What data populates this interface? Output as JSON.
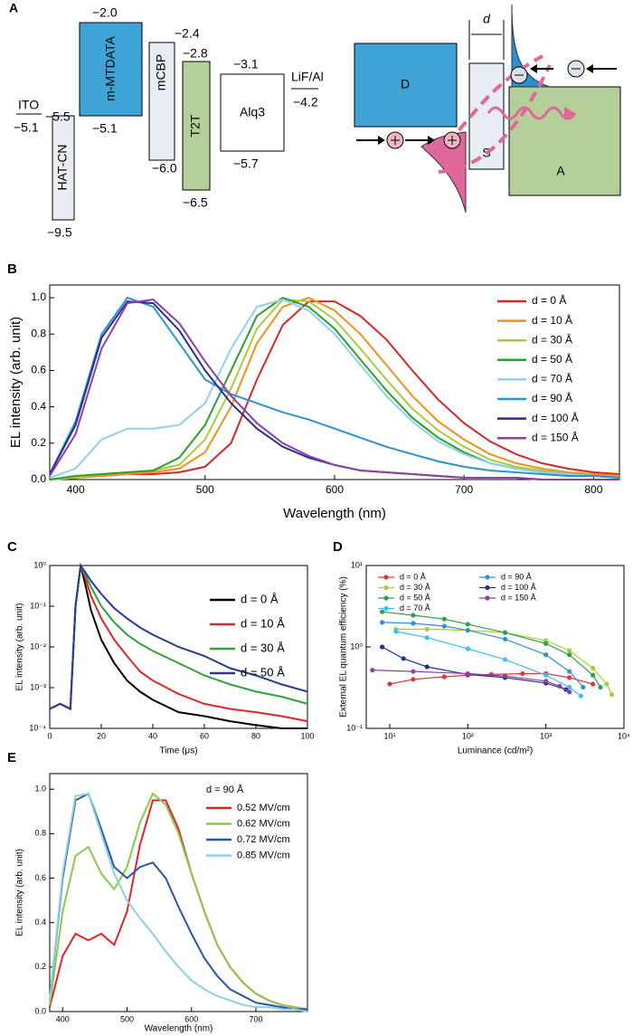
{
  "diagram": {
    "label": "A",
    "ito": {
      "name": "ITO",
      "level": "−5.1"
    },
    "layers": [
      {
        "name": "HAT-CN",
        "lumo": "−5.5",
        "homo": "−9.5"
      },
      {
        "name": "m-MTDATA",
        "lumo": "−2.0",
        "homo": "−5.1"
      },
      {
        "name": "mCBP",
        "lumo": "−2.4",
        "homo": "−6.0"
      },
      {
        "name": "T2T",
        "lumo": "−2.8",
        "homo": "−6.5"
      },
      {
        "name": "Alq3",
        "lumo": "−3.1",
        "homo": "−5.7"
      }
    ],
    "cathode": {
      "name": "LiF/Al",
      "level": "−4.2"
    },
    "schematic": {
      "gap": "d",
      "donor": "D",
      "spacer": "S",
      "acceptor": "A"
    }
  },
  "chart_data": [
    {
      "type": "line",
      "label": "B",
      "x_label": "Wavelength (nm)",
      "y_label": "EL intensity (arb. unit)",
      "x": [
        380,
        400,
        420,
        440,
        460,
        480,
        500,
        520,
        540,
        560,
        580,
        600,
        620,
        640,
        660,
        680,
        700,
        720,
        740,
        760,
        780,
        800,
        820
      ],
      "xlim": [
        380,
        820
      ],
      "xticks": [
        400,
        500,
        600,
        700,
        800
      ],
      "ylim": [
        0,
        1.07
      ],
      "yticks": [
        {
          "value": 0,
          "label": "0.0"
        },
        0.2,
        0.4,
        0.6,
        0.8,
        {
          "value": 1,
          "label": "1.0"
        }
      ],
      "series": [
        {
          "name": "d = 0 Å",
          "color": "#d62728",
          "values": [
            0.0,
            0.01,
            0.02,
            0.03,
            0.03,
            0.04,
            0.07,
            0.2,
            0.55,
            0.85,
            0.98,
            0.98,
            0.9,
            0.77,
            0.6,
            0.44,
            0.31,
            0.21,
            0.14,
            0.09,
            0.06,
            0.04,
            0.03
          ]
        },
        {
          "name": "d = 10 Å",
          "color": "#f0901e",
          "values": [
            0.0,
            0.01,
            0.02,
            0.03,
            0.04,
            0.06,
            0.15,
            0.4,
            0.75,
            0.95,
            1.0,
            0.93,
            0.8,
            0.63,
            0.46,
            0.32,
            0.22,
            0.14,
            0.09,
            0.06,
            0.04,
            0.03,
            0.02
          ]
        },
        {
          "name": "d = 30 Å",
          "color": "#a8cc3c",
          "values": [
            0.0,
            0.01,
            0.03,
            0.04,
            0.05,
            0.08,
            0.22,
            0.5,
            0.83,
            0.99,
            0.98,
            0.88,
            0.72,
            0.55,
            0.39,
            0.27,
            0.18,
            0.11,
            0.07,
            0.05,
            0.03,
            0.02,
            0.01
          ]
        },
        {
          "name": "d = 50 Å",
          "color": "#2ca02c",
          "values": [
            0.0,
            0.02,
            0.03,
            0.04,
            0.05,
            0.12,
            0.3,
            0.6,
            0.9,
            1.0,
            0.95,
            0.83,
            0.66,
            0.49,
            0.34,
            0.23,
            0.15,
            0.09,
            0.06,
            0.04,
            0.03,
            0.02,
            0.01
          ]
        },
        {
          "name": "d = 70 Å",
          "color": "#8fd0f0",
          "values": [
            0.01,
            0.06,
            0.22,
            0.28,
            0.28,
            0.3,
            0.42,
            0.72,
            0.95,
            0.99,
            0.93,
            0.8,
            0.63,
            0.46,
            0.32,
            0.21,
            0.14,
            0.09,
            0.06,
            0.04,
            0.03,
            0.02,
            0.01
          ]
        },
        {
          "name": "d = 90 Å",
          "color": "#2b93d1",
          "values": [
            0.03,
            0.32,
            0.8,
            1.0,
            0.95,
            0.75,
            0.55,
            0.47,
            0.42,
            0.37,
            0.33,
            0.28,
            0.23,
            0.18,
            0.14,
            0.1,
            0.07,
            0.05,
            0.04,
            0.03,
            0.02,
            0.02,
            0.01
          ]
        },
        {
          "name": "d = 100 Å",
          "color": "#2a2f8f",
          "values": [
            0.03,
            0.3,
            0.78,
            0.98,
            0.97,
            0.82,
            0.6,
            0.42,
            0.28,
            0.18,
            0.12,
            0.08,
            0.05,
            0.04,
            0.03,
            0.02,
            0.01,
            0.01,
            0.01,
            0.0,
            0.0,
            0.0,
            0.0
          ]
        },
        {
          "name": "d = 150 Å",
          "color": "#8e3fa8",
          "values": [
            0.02,
            0.25,
            0.72,
            0.97,
            0.99,
            0.86,
            0.65,
            0.46,
            0.31,
            0.2,
            0.13,
            0.08,
            0.05,
            0.04,
            0.03,
            0.02,
            0.01,
            0.01,
            0.01,
            0.0,
            0.0,
            0.0,
            0.0
          ]
        }
      ]
    },
    {
      "type": "line",
      "label": "C",
      "x_label": "Time (μs)",
      "y_label": "EL intensity (arb. unit)",
      "ylog": true,
      "x": [
        0,
        4,
        8,
        10,
        12,
        14,
        16,
        20,
        25,
        30,
        35,
        40,
        50,
        60,
        70,
        80,
        90,
        100
      ],
      "xlim": [
        0,
        100
      ],
      "xticks": [
        0,
        20,
        40,
        60,
        80,
        100
      ],
      "ylim": [
        0.0001,
        1
      ],
      "yticks": [
        {
          "value": 0.0001,
          "label": "10⁻⁴"
        },
        {
          "value": 0.001,
          "label": "10⁻³"
        },
        {
          "value": 0.01,
          "label": "10⁻²"
        },
        {
          "value": 0.1,
          "label": "10⁻¹"
        },
        {
          "value": 1,
          "label": "10⁰"
        }
      ],
      "series": [
        {
          "name": "d = 0 Å",
          "color": "#000000",
          "values": [
            0.0003,
            0.0004,
            0.0003,
            0.1,
            1.0,
            0.3,
            0.08,
            0.015,
            0.004,
            0.0015,
            0.0008,
            0.0005,
            0.00025,
            0.0002,
            0.00015,
            0.00012,
            0.0001,
            0.0001
          ]
        },
        {
          "name": "d = 10 Å",
          "color": "#e0242a",
          "values": [
            0.0003,
            0.0004,
            0.0003,
            0.1,
            1.0,
            0.45,
            0.18,
            0.05,
            0.015,
            0.006,
            0.0025,
            0.0015,
            0.0007,
            0.0004,
            0.0003,
            0.00025,
            0.0002,
            0.00015
          ]
        },
        {
          "name": "d = 30 Å",
          "color": "#2fa33a",
          "values": [
            0.0003,
            0.0004,
            0.0003,
            0.1,
            1.0,
            0.55,
            0.3,
            0.1,
            0.04,
            0.02,
            0.012,
            0.008,
            0.004,
            0.002,
            0.0012,
            0.0008,
            0.0006,
            0.0004
          ]
        },
        {
          "name": "d = 50 Å",
          "color": "#2a3a94",
          "values": [
            0.0003,
            0.0004,
            0.0003,
            0.1,
            1.0,
            0.65,
            0.42,
            0.2,
            0.09,
            0.05,
            0.03,
            0.02,
            0.01,
            0.006,
            0.003,
            0.002,
            0.0012,
            0.0008
          ]
        }
      ]
    },
    {
      "type": "line",
      "label": "D",
      "x_label": "Luminance (cd/m²)",
      "y_label": "External EL quantum efficiency (%)",
      "xlog": true,
      "ylog": true,
      "markers": true,
      "xlim": [
        5,
        10000
      ],
      "xticks": [
        {
          "value": 10,
          "label": "10¹"
        },
        {
          "value": 100,
          "label": "10²"
        },
        {
          "value": 1000,
          "label": "10³"
        },
        {
          "value": 10000,
          "label": "10⁴"
        }
      ],
      "ylim": [
        0.1,
        10
      ],
      "yticks": [
        {
          "value": 0.1,
          "label": "10⁻¹"
        },
        {
          "value": 1,
          "label": "10⁰"
        },
        {
          "value": 10,
          "label": "10¹"
        }
      ],
      "series": [
        {
          "name": "d = 0 Å",
          "color": "#e0353a",
          "x": [
            10,
            20,
            50,
            100,
            200,
            500,
            1000,
            2000,
            4000
          ],
          "values": [
            0.35,
            0.4,
            0.43,
            0.45,
            0.46,
            0.47,
            0.47,
            0.42,
            0.35
          ]
        },
        {
          "name": "d = 30 Å",
          "color": "#a8cc3c",
          "x": [
            12,
            30,
            100,
            300,
            1000,
            2000,
            4000,
            6000,
            7000
          ],
          "values": [
            1.65,
            1.65,
            1.6,
            1.5,
            1.2,
            0.9,
            0.55,
            0.35,
            0.26
          ]
        },
        {
          "name": "d = 50 Å",
          "color": "#2ca24a",
          "x": [
            8,
            20,
            50,
            100,
            300,
            1000,
            2000,
            4000,
            5000
          ],
          "values": [
            2.7,
            2.45,
            2.2,
            1.9,
            1.5,
            1.1,
            0.8,
            0.45,
            0.32
          ]
        },
        {
          "name": "d = 70 Å",
          "color": "#3cc0ef",
          "x": [
            12,
            30,
            100,
            300,
            1000,
            2000,
            2800
          ],
          "values": [
            1.55,
            1.3,
            0.95,
            0.7,
            0.45,
            0.32,
            0.25
          ]
        },
        {
          "name": "d = 90 Å",
          "color": "#2b93d1",
          "x": [
            8,
            20,
            50,
            100,
            300,
            1000,
            2000,
            3000
          ],
          "values": [
            2.0,
            1.95,
            1.8,
            1.6,
            1.25,
            0.8,
            0.5,
            0.32
          ]
        },
        {
          "name": "d = 100 Å",
          "color": "#2a2f8f",
          "x": [
            8,
            15,
            30,
            100,
            300,
            1000,
            1800
          ],
          "values": [
            1.0,
            0.72,
            0.57,
            0.46,
            0.42,
            0.36,
            0.3
          ]
        },
        {
          "name": "d = 150 Å",
          "color": "#8e3fa8",
          "x": [
            6,
            20,
            100,
            300,
            1000,
            1500,
            2000
          ],
          "values": [
            0.52,
            0.5,
            0.47,
            0.44,
            0.38,
            0.33,
            0.28
          ]
        }
      ]
    },
    {
      "type": "line",
      "label": "E",
      "x_label": "Wavelength (nm)",
      "y_label": "EL intensity (arb. unit)",
      "annotation": "d = 90 Å",
      "x": [
        380,
        400,
        420,
        440,
        460,
        480,
        500,
        520,
        540,
        560,
        580,
        600,
        620,
        640,
        660,
        680,
        700,
        720,
        740,
        760,
        780
      ],
      "xlim": [
        380,
        780
      ],
      "xticks": [
        400,
        500,
        600,
        700
      ],
      "ylim": [
        0,
        1.07
      ],
      "yticks": [
        {
          "value": 0,
          "label": "0.0"
        },
        0.2,
        0.4,
        0.6,
        0.8,
        {
          "value": 1,
          "label": "1.0"
        }
      ],
      "series": [
        {
          "name": "0.52 MV/cm",
          "color": "#e0242a",
          "values": [
            0.02,
            0.25,
            0.35,
            0.32,
            0.35,
            0.3,
            0.45,
            0.75,
            0.95,
            0.95,
            0.82,
            0.62,
            0.45,
            0.3,
            0.2,
            0.13,
            0.08,
            0.05,
            0.03,
            0.02,
            0.01
          ]
        },
        {
          "name": "0.62 MV/cm",
          "color": "#8cc84b",
          "values": [
            0.03,
            0.45,
            0.7,
            0.74,
            0.62,
            0.55,
            0.65,
            0.85,
            0.98,
            0.93,
            0.8,
            0.62,
            0.45,
            0.3,
            0.2,
            0.13,
            0.08,
            0.05,
            0.03,
            0.02,
            0.01
          ]
        },
        {
          "name": "0.72 MV/cm",
          "color": "#2a55a8",
          "values": [
            0.05,
            0.6,
            0.95,
            0.98,
            0.82,
            0.65,
            0.6,
            0.65,
            0.67,
            0.6,
            0.47,
            0.35,
            0.24,
            0.16,
            0.1,
            0.07,
            0.04,
            0.03,
            0.02,
            0.01,
            0.01
          ]
        },
        {
          "name": "0.85 MV/cm",
          "color": "#8fd0e0",
          "values": [
            0.05,
            0.62,
            0.97,
            0.98,
            0.8,
            0.62,
            0.5,
            0.42,
            0.35,
            0.27,
            0.2,
            0.14,
            0.1,
            0.07,
            0.05,
            0.03,
            0.02,
            0.02,
            0.01,
            0.01,
            0.0
          ]
        }
      ]
    }
  ]
}
